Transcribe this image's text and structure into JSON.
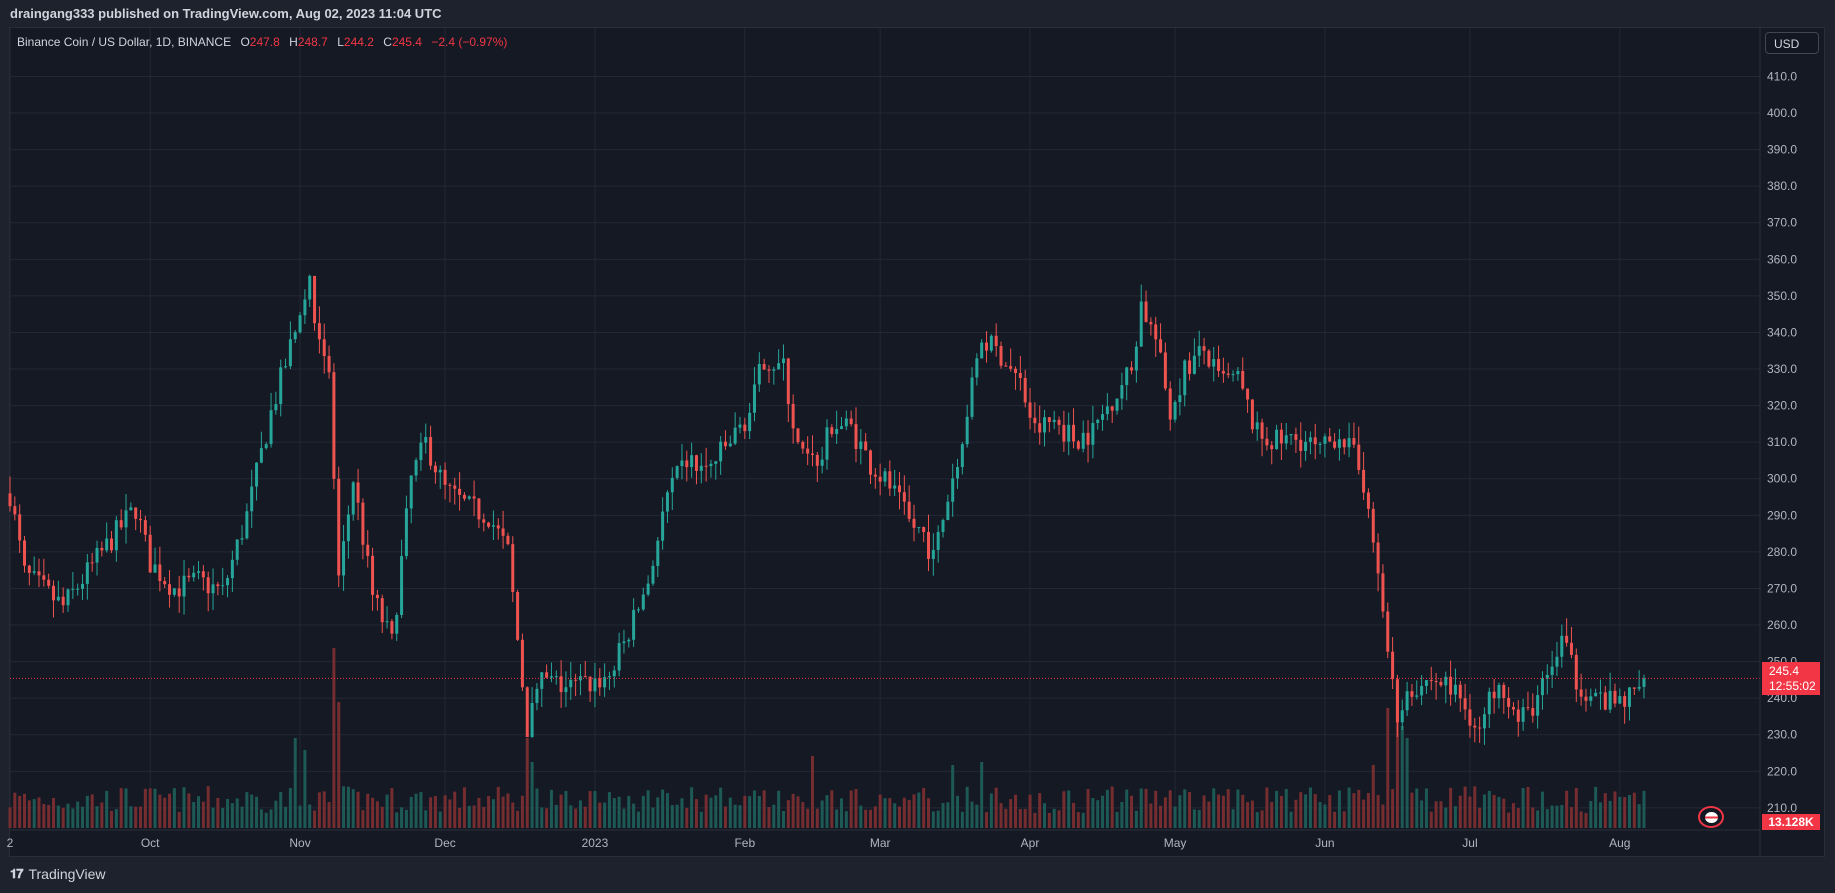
{
  "header": {
    "published": "draingang333 published on TradingView.com, Aug 02, 2023 11:04 UTC"
  },
  "legend": {
    "symbol": "Binance Coin / US Dollar, 1D, BINANCE",
    "o_label": "O",
    "o": "247.8",
    "h_label": "H",
    "h": "248.7",
    "l_label": "L",
    "l": "244.2",
    "c_label": "C",
    "c": "245.4",
    "change": "−2.4 (−0.97%)"
  },
  "currency_button": "USD",
  "last_price_tag": {
    "price": "245.4",
    "countdown": "12:55:02"
  },
  "volume_tag": "13.128K",
  "footer": {
    "brand": "TradingView"
  },
  "colors": {
    "up": "#26a69a",
    "down": "#ef5350",
    "background": "#151924",
    "grid": "#232834",
    "last_price": "#f23645"
  },
  "chart_data": {
    "type": "candlestick",
    "title": "Binance Coin / US Dollar, 1D, BINANCE",
    "y_ticks": [
      "210.0",
      "220.0",
      "230.0",
      "240.0",
      "250.0",
      "260.0",
      "270.0",
      "280.0",
      "290.0",
      "300.0",
      "310.0",
      "320.0",
      "330.0",
      "340.0",
      "350.0",
      "360.0",
      "370.0",
      "380.0",
      "390.0",
      "400.0",
      "410.0"
    ],
    "ylim": [
      204.5,
      414.5
    ],
    "x_ticks": [
      "2",
      "Oct",
      "Nov",
      "Dec",
      "2023",
      "Feb",
      "Mar",
      "Apr",
      "May",
      "Jun",
      "Jul",
      "Aug"
    ],
    "x_tick_days": [
      -25,
      4,
      35,
      65,
      96,
      127,
      155,
      186,
      216,
      247,
      277,
      308
    ],
    "x_domain_days": [
      -25,
      337
    ],
    "last_price": 245.4,
    "legend_position": "top-left",
    "grid": true,
    "anchors": [
      {
        "day": -25,
        "price": 296
      },
      {
        "day": -22,
        "price": 274
      },
      {
        "day": -14,
        "price": 265
      },
      {
        "day": -7,
        "price": 278
      },
      {
        "day": -2,
        "price": 287
      },
      {
        "day": 1,
        "price": 292
      },
      {
        "day": 4,
        "price": 277
      },
      {
        "day": 9,
        "price": 270
      },
      {
        "day": 14,
        "price": 272
      },
      {
        "day": 19,
        "price": 269
      },
      {
        "day": 24,
        "price": 290
      },
      {
        "day": 29,
        "price": 318
      },
      {
        "day": 33,
        "price": 336
      },
      {
        "day": 37,
        "price": 352
      },
      {
        "day": 41,
        "price": 328
      },
      {
        "day": 43,
        "price": 272
      },
      {
        "day": 46,
        "price": 300
      },
      {
        "day": 50,
        "price": 268
      },
      {
        "day": 54,
        "price": 255
      },
      {
        "day": 58,
        "price": 300
      },
      {
        "day": 61,
        "price": 310
      },
      {
        "day": 65,
        "price": 297
      },
      {
        "day": 70,
        "price": 292
      },
      {
        "day": 74,
        "price": 290
      },
      {
        "day": 78,
        "price": 280
      },
      {
        "day": 82,
        "price": 232
      },
      {
        "day": 85,
        "price": 245
      },
      {
        "day": 90,
        "price": 243
      },
      {
        "day": 95,
        "price": 244
      },
      {
        "day": 99,
        "price": 246
      },
      {
        "day": 103,
        "price": 258
      },
      {
        "day": 107,
        "price": 272
      },
      {
        "day": 111,
        "price": 295
      },
      {
        "day": 115,
        "price": 305
      },
      {
        "day": 119,
        "price": 302
      },
      {
        "day": 124,
        "price": 310
      },
      {
        "day": 128,
        "price": 318
      },
      {
        "day": 131,
        "price": 333
      },
      {
        "day": 135,
        "price": 330
      },
      {
        "day": 138,
        "price": 308
      },
      {
        "day": 142,
        "price": 302
      },
      {
        "day": 145,
        "price": 315
      },
      {
        "day": 149,
        "price": 314
      },
      {
        "day": 153,
        "price": 304
      },
      {
        "day": 157,
        "price": 298
      },
      {
        "day": 161,
        "price": 288
      },
      {
        "day": 164,
        "price": 285
      },
      {
        "day": 166,
        "price": 278
      },
      {
        "day": 169,
        "price": 295
      },
      {
        "day": 172,
        "price": 312
      },
      {
        "day": 176,
        "price": 338
      },
      {
        "day": 180,
        "price": 334
      },
      {
        "day": 184,
        "price": 326
      },
      {
        "day": 187,
        "price": 313
      },
      {
        "day": 191,
        "price": 316
      },
      {
        "day": 195,
        "price": 311
      },
      {
        "day": 199,
        "price": 313
      },
      {
        "day": 203,
        "price": 322
      },
      {
        "day": 207,
        "price": 330
      },
      {
        "day": 209,
        "price": 348
      },
      {
        "day": 212,
        "price": 338
      },
      {
        "day": 215,
        "price": 318
      },
      {
        "day": 218,
        "price": 330
      },
      {
        "day": 222,
        "price": 335
      },
      {
        "day": 225,
        "price": 327
      },
      {
        "day": 229,
        "price": 327
      },
      {
        "day": 233,
        "price": 312
      },
      {
        "day": 237,
        "price": 310
      },
      {
        "day": 242,
        "price": 311
      },
      {
        "day": 246,
        "price": 307
      },
      {
        "day": 250,
        "price": 313
      },
      {
        "day": 253,
        "price": 306
      },
      {
        "day": 256,
        "price": 295
      },
      {
        "day": 257,
        "price": 280
      },
      {
        "day": 260,
        "price": 256
      },
      {
        "day": 262,
        "price": 236
      },
      {
        "day": 265,
        "price": 243
      },
      {
        "day": 269,
        "price": 245
      },
      {
        "day": 272,
        "price": 244
      },
      {
        "day": 275,
        "price": 240
      },
      {
        "day": 279,
        "price": 231
      },
      {
        "day": 283,
        "price": 247
      },
      {
        "day": 287,
        "price": 233
      },
      {
        "day": 290,
        "price": 238
      },
      {
        "day": 293,
        "price": 245
      },
      {
        "day": 296,
        "price": 256
      },
      {
        "day": 299,
        "price": 245
      },
      {
        "day": 303,
        "price": 240
      },
      {
        "day": 307,
        "price": 238
      },
      {
        "day": 311,
        "price": 241
      },
      {
        "day": 313,
        "price": 245.4
      }
    ],
    "volume_spikes": [
      {
        "day": 34,
        "value": 3.0
      },
      {
        "day": 36,
        "value": 2.6
      },
      {
        "day": 42,
        "value": 6.0
      },
      {
        "day": 43,
        "value": 4.2
      },
      {
        "day": 82,
        "value": 3.0
      },
      {
        "day": 83,
        "value": 2.2
      },
      {
        "day": 141,
        "value": 2.4
      },
      {
        "day": 170,
        "value": 2.1
      },
      {
        "day": 176,
        "value": 2.2
      },
      {
        "day": 257,
        "value": 2.1
      },
      {
        "day": 260,
        "value": 4.0
      },
      {
        "day": 262,
        "value": 4.8
      },
      {
        "day": 263,
        "value": 3.4
      },
      {
        "day": 264,
        "value": 3.0
      }
    ],
    "candles_to_draw": 338
  }
}
